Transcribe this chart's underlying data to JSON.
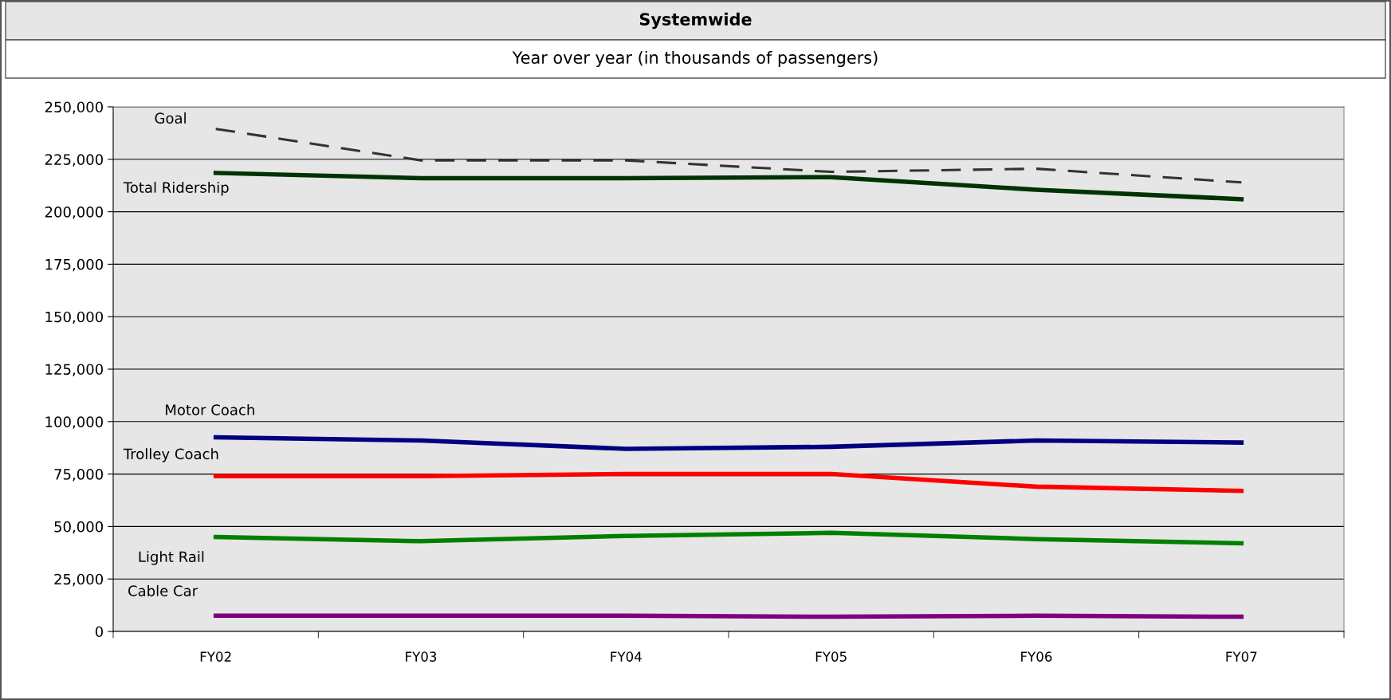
{
  "chart_data": {
    "type": "line",
    "title": "Systemwide",
    "subtitle": "Year over year (in thousands of passengers)",
    "categories": [
      "FY02",
      "FY03",
      "FY04",
      "FY05",
      "FY06",
      "FY07"
    ],
    "series": [
      {
        "name": "Goal",
        "color": "#333333",
        "line_style": "dashed",
        "values": [
          239500,
          224500,
          224500,
          219000,
          220500,
          214000
        ]
      },
      {
        "name": "Total Ridership",
        "color": "#003300",
        "values": [
          218500,
          216000,
          216000,
          216500,
          210500,
          206000
        ]
      },
      {
        "name": "Motor Coach",
        "color": "#000080",
        "values": [
          92500,
          91000,
          87000,
          88000,
          91000,
          90000
        ]
      },
      {
        "name": "Trolley Coach",
        "color": "#ff0000",
        "values": [
          74000,
          74000,
          75000,
          75000,
          69000,
          67000
        ]
      },
      {
        "name": "Light Rail",
        "color": "#008000",
        "values": [
          45000,
          43000,
          45500,
          47000,
          44000,
          42000
        ]
      },
      {
        "name": "Cable Car",
        "color": "#800080",
        "values": [
          7500,
          7500,
          7500,
          7000,
          7500,
          7000
        ]
      }
    ],
    "ylim": [
      0,
      250000
    ],
    "yticks": [
      {
        "value": 0,
        "label": "0"
      },
      {
        "value": 25000,
        "label": "25,000"
      },
      {
        "value": 50000,
        "label": "50,000"
      },
      {
        "value": 75000,
        "label": "75,000"
      },
      {
        "value": 100000,
        "label": "100,000"
      },
      {
        "value": 125000,
        "label": "125,000"
      },
      {
        "value": 150000,
        "label": "150,000"
      },
      {
        "value": 175000,
        "label": "175,000"
      },
      {
        "value": 200000,
        "label": "200,000"
      },
      {
        "value": 225000,
        "label": "225,000"
      },
      {
        "value": 250000,
        "label": "250,000"
      }
    ],
    "grid": "y",
    "legend": false,
    "marker": "none",
    "line_style": "solid"
  }
}
